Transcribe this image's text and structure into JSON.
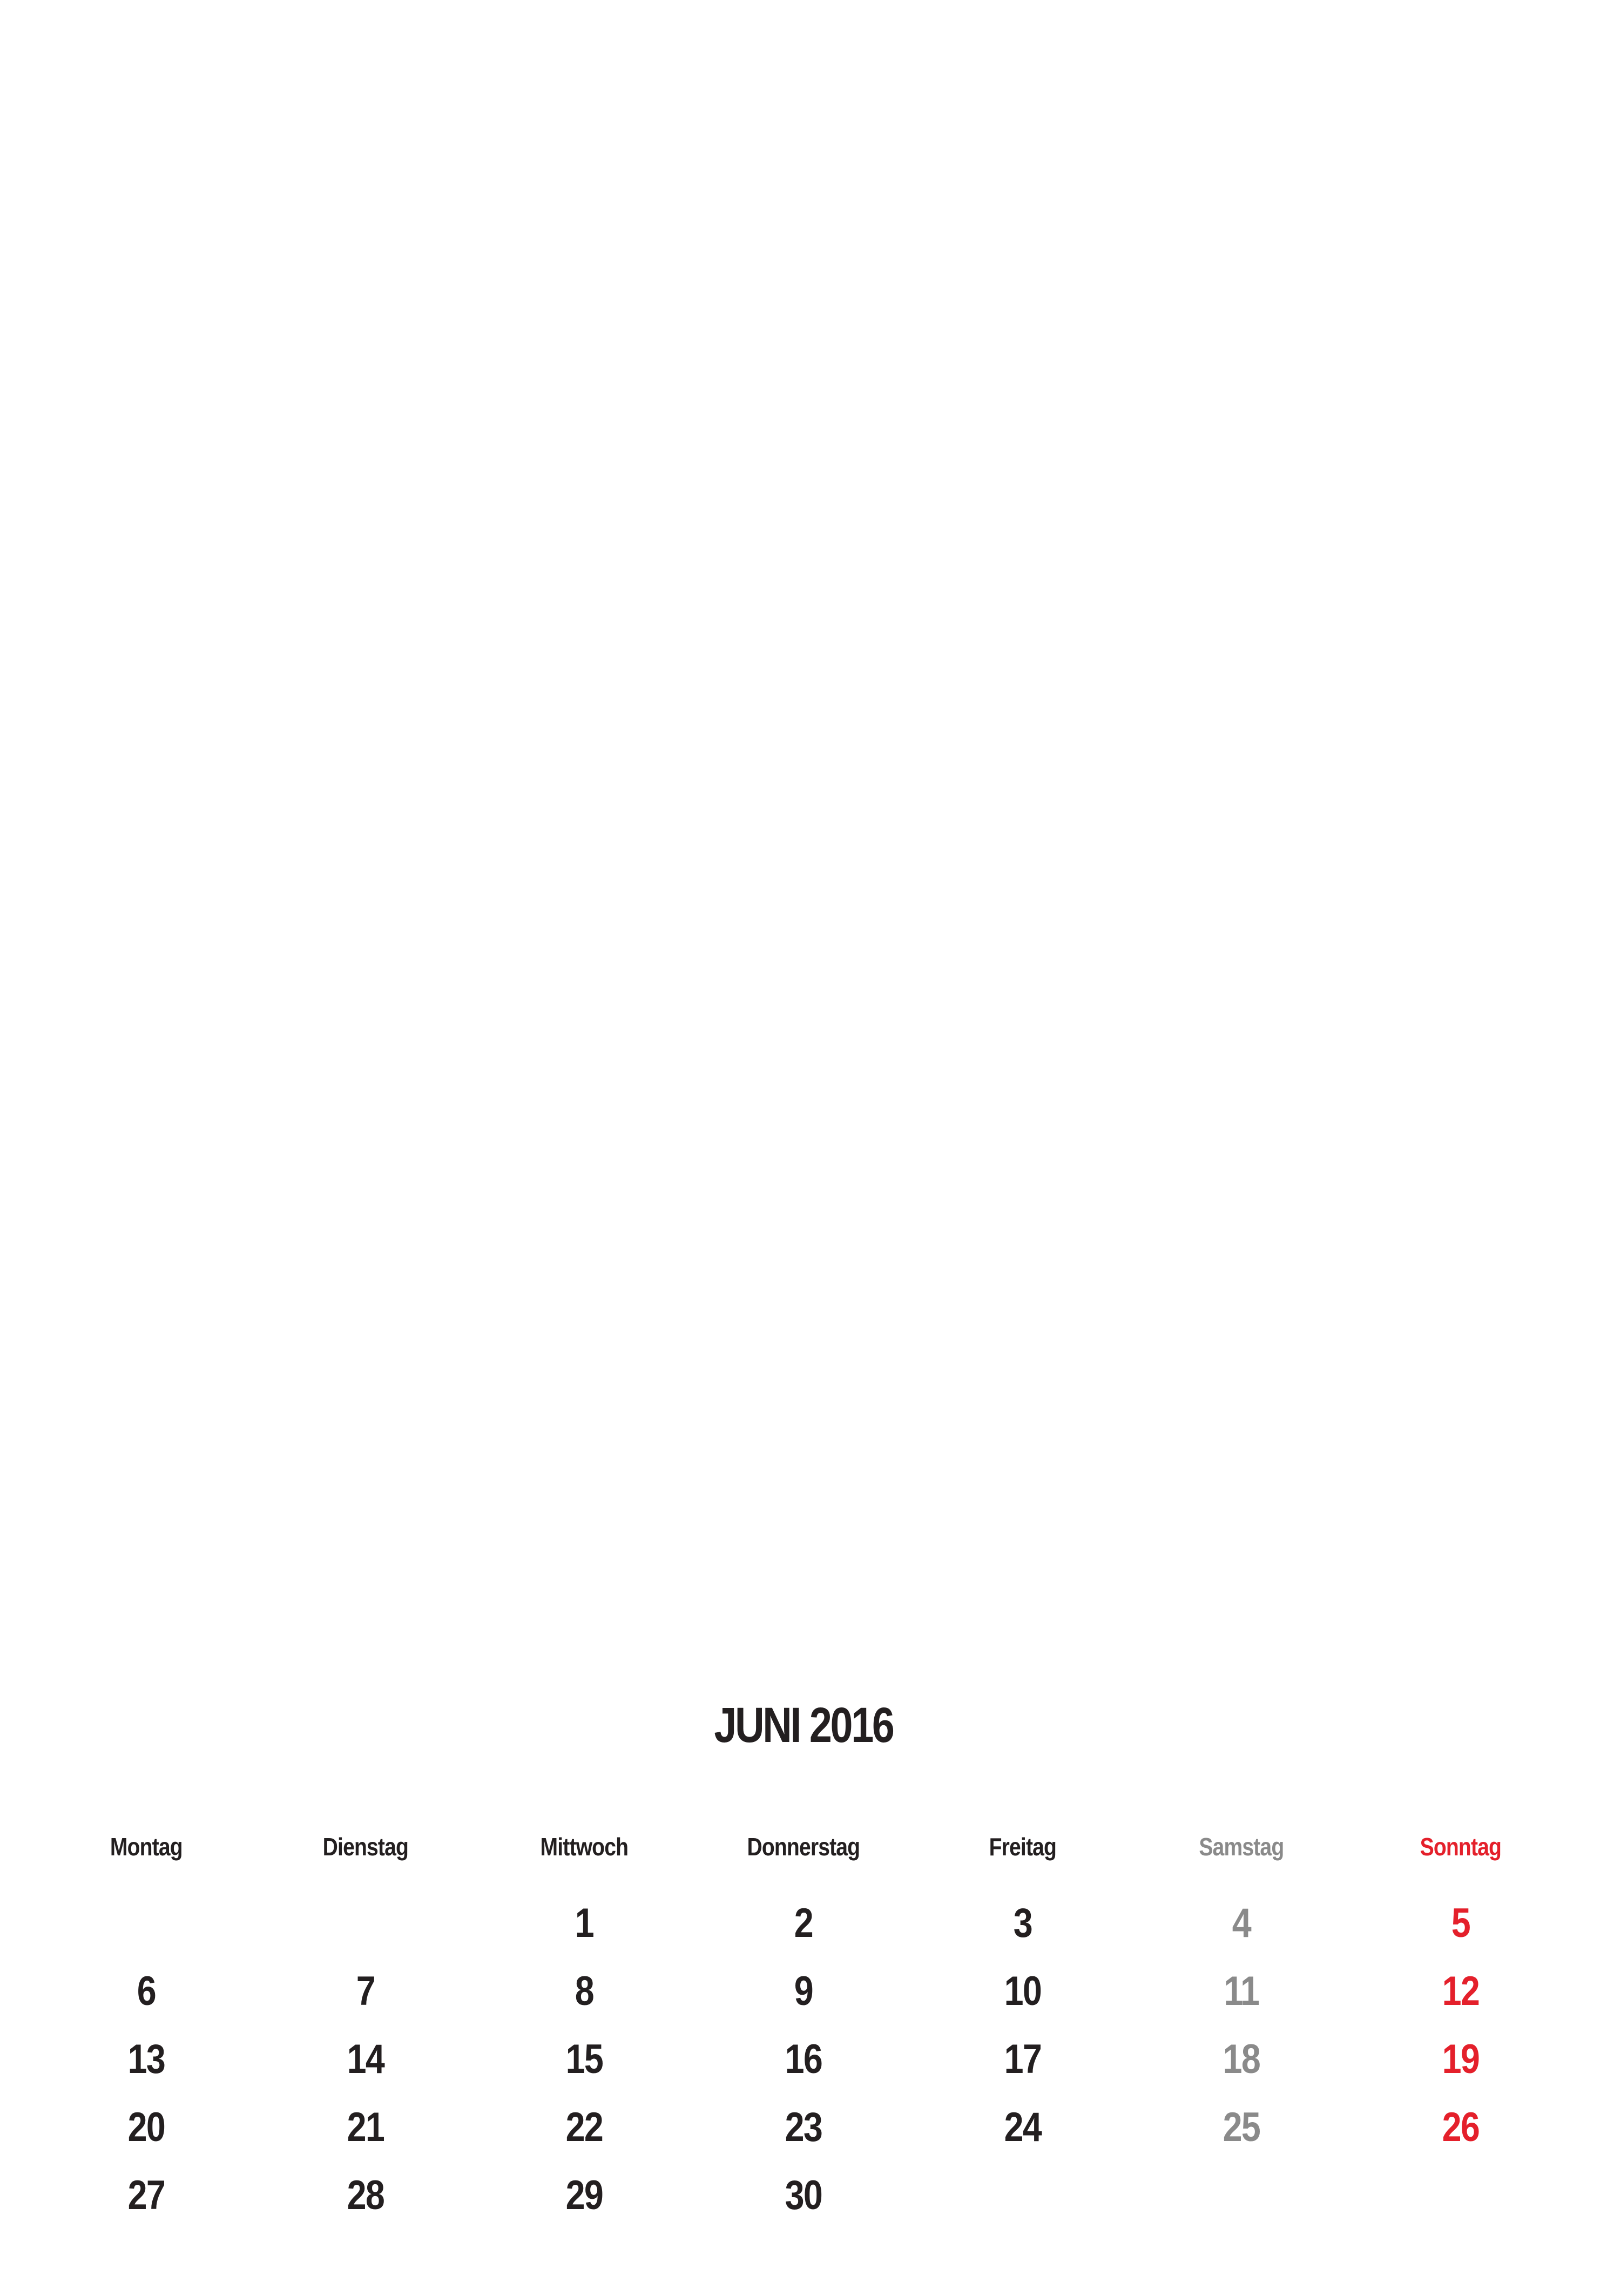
{
  "calendar": {
    "title": "JUNI 2016",
    "weekdays": [
      {
        "label": "Montag",
        "kind": "weekday"
      },
      {
        "label": "Dienstag",
        "kind": "weekday"
      },
      {
        "label": "Mittwoch",
        "kind": "weekday"
      },
      {
        "label": "Donnerstag",
        "kind": "weekday"
      },
      {
        "label": "Freitag",
        "kind": "weekday"
      },
      {
        "label": "Samstag",
        "kind": "saturday"
      },
      {
        "label": "Sonntag",
        "kind": "sunday"
      }
    ],
    "weeks": [
      [
        "",
        "",
        "1",
        "2",
        "3",
        "4",
        "5"
      ],
      [
        "6",
        "7",
        "8",
        "9",
        "10",
        "11",
        "12"
      ],
      [
        "13",
        "14",
        "15",
        "16",
        "17",
        "18",
        "19"
      ],
      [
        "20",
        "21",
        "22",
        "23",
        "24",
        "25",
        "26"
      ],
      [
        "27",
        "28",
        "29",
        "30",
        "",
        "",
        ""
      ]
    ]
  },
  "colors": {
    "text": "#231f20",
    "saturday": "#8a8a8a",
    "sunday": "#e4202b",
    "background": "#ffffff"
  }
}
